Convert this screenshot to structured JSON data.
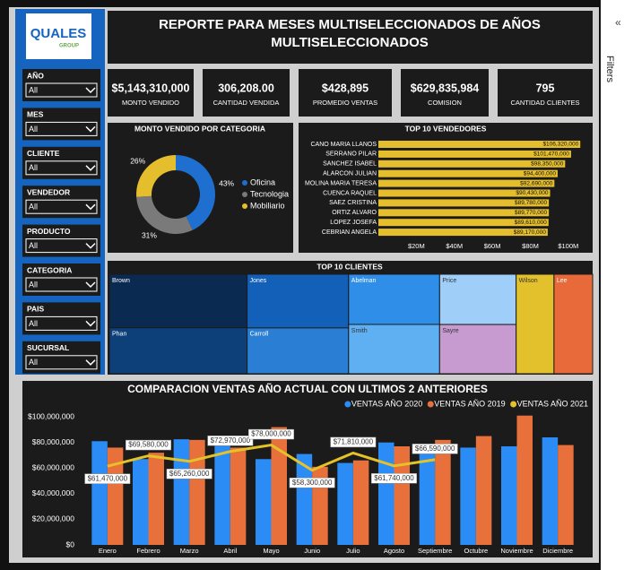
{
  "logo": {
    "name": "QUALES",
    "sub": "GROUP"
  },
  "filters_pane": {
    "label": "Filters"
  },
  "header": {
    "title": "REPORTE PARA MESES MULTISELECCIONADOS DE AÑOS MULTISELECCIONADOS"
  },
  "slicers": [
    {
      "label": "AÑO",
      "value": "All"
    },
    {
      "label": "MES",
      "value": "All"
    },
    {
      "label": "CLIENTE",
      "value": "All"
    },
    {
      "label": "VENDEDOR",
      "value": "All"
    },
    {
      "label": "PRODUCTO",
      "value": "All"
    },
    {
      "label": "CATEGORIA",
      "value": "All"
    },
    {
      "label": "PAIS",
      "value": "All"
    },
    {
      "label": "SUCURSAL",
      "value": "All"
    }
  ],
  "cards": [
    {
      "value": "$5,143,310,000",
      "label": "MONTO VENDIDO"
    },
    {
      "value": "306,208.00",
      "label": "CANTIDAD VENDIDA"
    },
    {
      "value": "$428,895",
      "label": "PROMEDIO VENTAS"
    },
    {
      "value": "$629,835,984",
      "label": "COMISION"
    },
    {
      "value": "795",
      "label": "CANTIDAD CLIENTES"
    }
  ],
  "chart_data": [
    {
      "type": "pie",
      "title": "MONTO VENDIDO POR CATEGORIA",
      "categories": [
        "Oficina",
        "Tecnologia",
        "Mobiliario"
      ],
      "values": [
        43,
        31,
        26
      ],
      "value_labels": [
        "43%",
        "31%",
        "26%"
      ],
      "colors": [
        "#1f6fd1",
        "#7a7a7a",
        "#e4be2c"
      ]
    },
    {
      "type": "hbar",
      "title": "TOP 10 VENDEDORES",
      "categories": [
        "CANO MARIA LLANOS",
        "SERRANO PILAR",
        "SANCHEZ ISABEL",
        "ALARCON JULIAN",
        "MOLINA MARIA TERESA",
        "CUENCA RAQUEL",
        "SAEZ CRISTINA",
        "ORTIZ ALVARO",
        "LOPEZ JOSEFA",
        "CEBRIAN ANGELA"
      ],
      "values": [
        106320000,
        101470000,
        98350000,
        94400000,
        92690000,
        90430000,
        89780000,
        89770000,
        89610000,
        89170000
      ],
      "value_labels": [
        "$106,320,000",
        "$101,470,000",
        "$98,350,000",
        "$94,400,000",
        "$92,690,000",
        "$90,430,000",
        "$89,780,000",
        "$89,770,000",
        "$89,610,000",
        "$89,170,000"
      ],
      "color": "#e4be2c",
      "xlim": [
        0,
        110000000
      ],
      "xticks": [
        {
          "value": 20000000,
          "label": "$20M"
        },
        {
          "value": 40000000,
          "label": "$40M"
        },
        {
          "value": 60000000,
          "label": "$60M"
        },
        {
          "value": 80000000,
          "label": "$80M"
        },
        {
          "value": 100000000,
          "label": "$100M"
        }
      ]
    },
    {
      "type": "treemap",
      "title": "TOP 10 CLIENTES",
      "categories": [
        "Brown",
        "Phan",
        "Jones",
        "Carroll",
        "Abelman",
        "Smith",
        "Price",
        "Sayre",
        "Wilson",
        "Lee"
      ],
      "values": [
        92,
        79,
        68,
        58,
        57,
        56,
        48,
        47,
        47,
        48
      ],
      "colors": [
        "#0a2a52",
        "#0d3f78",
        "#1360b8",
        "#2a7fd4",
        "#2f8ee8",
        "#5fb0f2",
        "#9fcff8",
        "#c79bd0",
        "#e2c12d",
        "#e8693a"
      ]
    },
    {
      "type": "combo",
      "title": "COMPARACION VENTAS AÑO ACTUAL CON ULTIMOS 2 ANTERIORES",
      "categories": [
        "Enero",
        "Febrero",
        "Marzo",
        "Abril",
        "Mayo",
        "Junio",
        "Julio",
        "Agosto",
        "Septiembre",
        "Octubre",
        "Noviembre",
        "Diciembre"
      ],
      "series": [
        {
          "name": "VENTAS AÑO 2020",
          "type": "bar",
          "color": "#2b8cf5",
          "values": [
            81000000,
            67000000,
            82500000,
            82000000,
            67000000,
            71000000,
            64000000,
            80000000,
            77000000,
            76000000,
            77000000,
            84000000
          ]
        },
        {
          "name": "VENTAS AÑO 2019",
          "type": "bar",
          "color": "#e8703a",
          "values": [
            76000000,
            72000000,
            82000000,
            76000000,
            92000000,
            61000000,
            66000000,
            77000000,
            82000000,
            85000000,
            101000000,
            78000000
          ]
        },
        {
          "name": "VENTAS AÑO 2021",
          "type": "line",
          "color": "#e6c229",
          "values": [
            61470000,
            69580000,
            65260000,
            72970000,
            78000000,
            58300000,
            71810000,
            61740000,
            66590000,
            null,
            null,
            null
          ],
          "value_labels": [
            "$61,470,000",
            "$69,580,000",
            "$65,260,000",
            "$72,970,000",
            "$78,000,000",
            "$58,300,000",
            "$71,810,000",
            "$61,740,000",
            "$66,590,000",
            null,
            null,
            null
          ]
        }
      ],
      "ylim": [
        0,
        105000000
      ],
      "yticks": [
        {
          "value": 0,
          "label": "$0"
        },
        {
          "value": 20000000,
          "label": "$20,000,000"
        },
        {
          "value": 40000000,
          "label": "$40,000,000"
        },
        {
          "value": 60000000,
          "label": "$60,000,000"
        },
        {
          "value": 80000000,
          "label": "$80,000,000"
        },
        {
          "value": 100000000,
          "label": "$100,000,000"
        }
      ],
      "grid": false
    }
  ]
}
